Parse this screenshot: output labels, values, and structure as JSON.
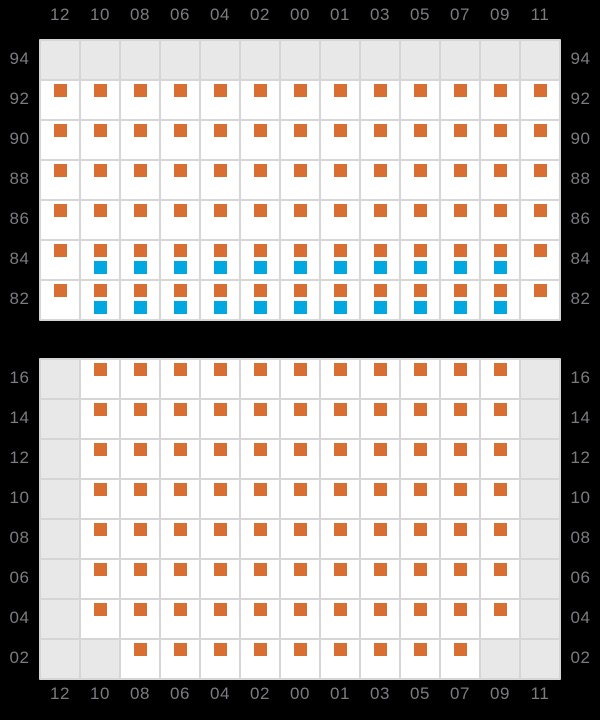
{
  "colors": {
    "background": "#000000",
    "cell_filled": "#ffffff",
    "cell_empty": "#e8e8e8",
    "grid_line": "#d6d6d6",
    "marker_primary": "#d96e32",
    "marker_secondary": "#00a7e0",
    "axis_label": "#7b7b80"
  },
  "chart_data": {
    "type": "heatmap",
    "title": "",
    "xlabel": "",
    "ylabel": "",
    "grid": true,
    "legend_position": "none",
    "column_labels": [
      "12",
      "10",
      "08",
      "06",
      "04",
      "02",
      "00",
      "01",
      "03",
      "05",
      "07",
      "09",
      "11"
    ],
    "column_axis_shown": "top and bottom",
    "row_axis_shown": "left and right",
    "cell_value_legend": {
      "0": "empty slot (gray cell, no marker)",
      "1": "one orange marker",
      "2": "orange marker above blue marker"
    },
    "panels": [
      {
        "id": "upper",
        "row_labels": [
          "94",
          "92",
          "90",
          "88",
          "86",
          "84",
          "82"
        ],
        "values": [
          [
            0,
            0,
            0,
            0,
            0,
            0,
            0,
            0,
            0,
            0,
            0,
            0,
            0
          ],
          [
            1,
            1,
            1,
            1,
            1,
            1,
            1,
            1,
            1,
            1,
            1,
            1,
            1
          ],
          [
            1,
            1,
            1,
            1,
            1,
            1,
            1,
            1,
            1,
            1,
            1,
            1,
            1
          ],
          [
            1,
            1,
            1,
            1,
            1,
            1,
            1,
            1,
            1,
            1,
            1,
            1,
            1
          ],
          [
            1,
            1,
            1,
            1,
            1,
            1,
            1,
            1,
            1,
            1,
            1,
            1,
            1
          ],
          [
            1,
            2,
            2,
            2,
            2,
            2,
            2,
            2,
            2,
            2,
            2,
            2,
            1
          ],
          [
            1,
            2,
            2,
            2,
            2,
            2,
            2,
            2,
            2,
            2,
            2,
            2,
            1
          ]
        ]
      },
      {
        "id": "lower",
        "row_labels": [
          "16",
          "14",
          "12",
          "10",
          "08",
          "06",
          "04",
          "02"
        ],
        "values": [
          [
            0,
            1,
            1,
            1,
            1,
            1,
            1,
            1,
            1,
            1,
            1,
            1,
            0
          ],
          [
            0,
            1,
            1,
            1,
            1,
            1,
            1,
            1,
            1,
            1,
            1,
            1,
            0
          ],
          [
            0,
            1,
            1,
            1,
            1,
            1,
            1,
            1,
            1,
            1,
            1,
            1,
            0
          ],
          [
            0,
            1,
            1,
            1,
            1,
            1,
            1,
            1,
            1,
            1,
            1,
            1,
            0
          ],
          [
            0,
            1,
            1,
            1,
            1,
            1,
            1,
            1,
            1,
            1,
            1,
            1,
            0
          ],
          [
            0,
            1,
            1,
            1,
            1,
            1,
            1,
            1,
            1,
            1,
            1,
            1,
            0
          ],
          [
            0,
            1,
            1,
            1,
            1,
            1,
            1,
            1,
            1,
            1,
            1,
            1,
            0
          ],
          [
            0,
            0,
            1,
            1,
            1,
            1,
            1,
            1,
            1,
            1,
            1,
            0,
            0
          ]
        ]
      }
    ]
  }
}
